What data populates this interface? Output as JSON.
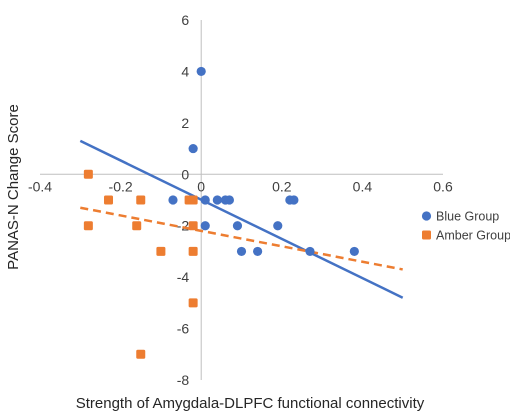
{
  "chart_data": {
    "type": "scatter",
    "xlabel": "Strength of Amygdala-DLPFC functional connectivity",
    "ylabel": "PANAS-N Change Score",
    "xlim": [
      -0.4,
      0.6
    ],
    "ylim": [
      -8,
      6
    ],
    "x_ticks": [
      "-0.4",
      "-0.2",
      "0",
      "0.2",
      "0.4",
      "0.6"
    ],
    "y_ticks": [
      "6",
      "4",
      "2",
      "0",
      "-2",
      "-4",
      "-6",
      "-8"
    ],
    "legend_position": "right",
    "series": [
      {
        "name": "Blue Group",
        "color": "#4472C4",
        "marker": "circle",
        "trendline": "solid",
        "points": [
          [
            0.0,
            4
          ],
          [
            -0.02,
            1
          ],
          [
            -0.07,
            -1
          ],
          [
            0.01,
            -1
          ],
          [
            0.04,
            -1
          ],
          [
            0.06,
            -1
          ],
          [
            0.07,
            -1
          ],
          [
            0.22,
            -1
          ],
          [
            0.23,
            -1
          ],
          [
            0.01,
            -2
          ],
          [
            0.09,
            -2
          ],
          [
            0.19,
            -2
          ],
          [
            0.1,
            -3
          ],
          [
            0.14,
            -3
          ],
          [
            0.27,
            -3
          ],
          [
            0.38,
            -3
          ]
        ],
        "trend": [
          [
            -0.3,
            1.3
          ],
          [
            0.5,
            -4.8
          ]
        ]
      },
      {
        "name": "Amber Group",
        "color": "#ED7D31",
        "marker": "square",
        "trendline": "dashed",
        "points": [
          [
            -0.28,
            0
          ],
          [
            -0.23,
            -1
          ],
          [
            -0.15,
            -1
          ],
          [
            -0.03,
            -1
          ],
          [
            -0.02,
            -1
          ],
          [
            -0.28,
            -2
          ],
          [
            -0.16,
            -2
          ],
          [
            -0.02,
            -2
          ],
          [
            -0.1,
            -3
          ],
          [
            -0.02,
            -3
          ],
          [
            -0.02,
            -5
          ],
          [
            -0.15,
            -7
          ]
        ],
        "trend": [
          [
            -0.3,
            -1.3
          ],
          [
            0.5,
            -3.7
          ]
        ]
      }
    ]
  }
}
